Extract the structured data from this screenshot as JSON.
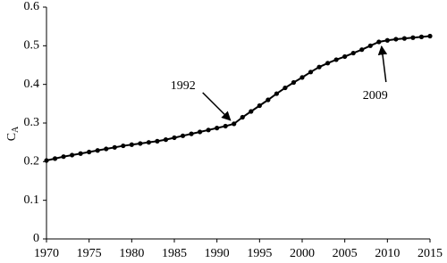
{
  "chart_data": {
    "type": "line",
    "y_label": "C",
    "y_label_subscript": "A",
    "x": [
      1970,
      1971,
      1972,
      1973,
      1974,
      1975,
      1976,
      1977,
      1978,
      1979,
      1980,
      1981,
      1982,
      1983,
      1984,
      1985,
      1986,
      1987,
      1988,
      1989,
      1990,
      1991,
      1992,
      1993,
      1994,
      1995,
      1996,
      1997,
      1998,
      1999,
      2000,
      2001,
      2002,
      2003,
      2004,
      2005,
      2006,
      2007,
      2008,
      2009,
      2010,
      2011,
      2012,
      2013,
      2014,
      2015
    ],
    "values": [
      0.203,
      0.208,
      0.213,
      0.217,
      0.221,
      0.225,
      0.229,
      0.233,
      0.237,
      0.241,
      0.244,
      0.247,
      0.25,
      0.253,
      0.257,
      0.262,
      0.267,
      0.272,
      0.277,
      0.282,
      0.287,
      0.292,
      0.298,
      0.315,
      0.33,
      0.345,
      0.36,
      0.376,
      0.391,
      0.405,
      0.418,
      0.432,
      0.445,
      0.455,
      0.464,
      0.472,
      0.481,
      0.49,
      0.5,
      0.51,
      0.514,
      0.517,
      0.519,
      0.521,
      0.523,
      0.525
    ],
    "color": "#000000",
    "xlim": [
      1970,
      2015
    ],
    "xticks": [
      1970,
      1975,
      1980,
      1985,
      1990,
      1995,
      2000,
      2005,
      2010,
      2015
    ],
    "ylim": [
      0,
      0.6
    ],
    "yticks": [
      0,
      0.1,
      0.2,
      0.3,
      0.4,
      0.5,
      0.6
    ],
    "grid": false,
    "annotations": [
      1992,
      2009
    ]
  }
}
